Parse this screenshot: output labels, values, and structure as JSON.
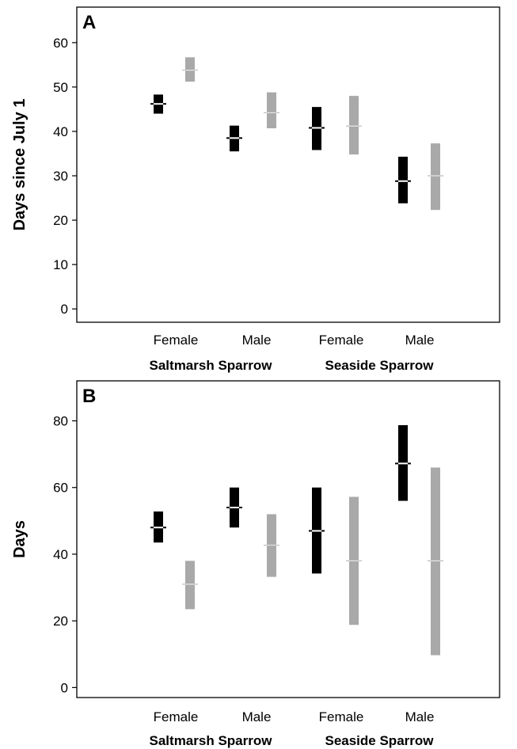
{
  "colors": {
    "series_dark": "#000000",
    "series_light": "#a9a9a9",
    "median_on_dark": "#ffffff",
    "median_on_light": "#e6e6e6",
    "frame": "#000000"
  },
  "chart_data": [
    {
      "type": "range-bar",
      "panel_label": "A",
      "ylabel": "Days since July 1",
      "ylim": [
        -3,
        68
      ],
      "yticks": [
        0,
        10,
        20,
        30,
        40,
        50,
        60
      ],
      "categories": [
        "Female",
        "Male",
        "Female",
        "Male"
      ],
      "groups": [
        "Saltmarsh Sparrow",
        "Seaside Sparrow"
      ],
      "grid": false,
      "series": [
        {
          "color": "#000000",
          "low": [
            44.0,
            35.5,
            35.8,
            23.8
          ],
          "median": [
            46.2,
            38.5,
            40.8,
            28.8
          ],
          "high": [
            48.3,
            41.3,
            45.5,
            34.3
          ]
        },
        {
          "color": "#a9a9a9",
          "low": [
            51.2,
            40.7,
            34.8,
            22.3
          ],
          "median": [
            53.8,
            44.2,
            41.2,
            30.0
          ],
          "high": [
            56.7,
            48.8,
            48.0,
            37.3
          ]
        }
      ]
    },
    {
      "type": "range-bar",
      "panel_label": "B",
      "ylabel": "Days",
      "ylim": [
        -3,
        92
      ],
      "yticks": [
        0,
        20,
        40,
        60,
        80
      ],
      "categories": [
        "Female",
        "Male",
        "Female",
        "Male"
      ],
      "groups": [
        "Saltmarsh Sparrow",
        "Seaside Sparrow"
      ],
      "grid": false,
      "series": [
        {
          "color": "#000000",
          "low": [
            43.5,
            48.0,
            34.2,
            56.0
          ],
          "median": [
            48.0,
            54.0,
            47.0,
            67.2
          ],
          "high": [
            52.8,
            60.0,
            60.0,
            78.7
          ]
        },
        {
          "color": "#a9a9a9",
          "low": [
            23.5,
            33.2,
            18.8,
            9.7
          ],
          "median": [
            31.0,
            42.7,
            38.0,
            38.0
          ],
          "high": [
            38.0,
            52.0,
            57.2,
            66.0
          ]
        }
      ]
    }
  ]
}
